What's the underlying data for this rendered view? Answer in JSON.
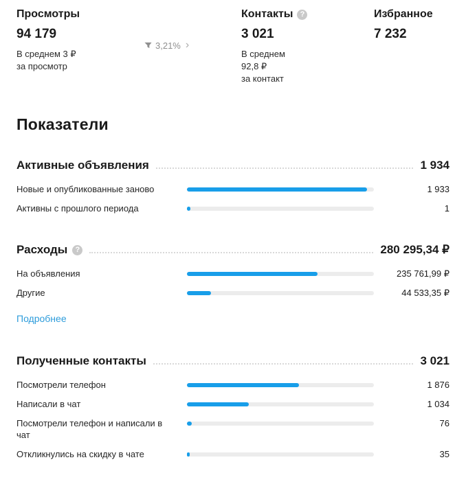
{
  "colors": {
    "accent": "#189ee9",
    "link": "#2d9cdb"
  },
  "summary": {
    "views": {
      "label": "Просмотры",
      "value": "94 179",
      "sub": "В среднем 3 ₽\nза просмотр"
    },
    "funnel": {
      "percent": "3,21%"
    },
    "contacts": {
      "label": "Контакты",
      "value": "3 021",
      "sub": "В среднем\n92,8 ₽\nза контакт"
    },
    "favorites": {
      "label": "Избранное",
      "value": "7 232"
    }
  },
  "heading": "Показатели",
  "sections": [
    {
      "title": "Активные объявления",
      "total": "1 934",
      "rows": [
        {
          "label": "Новые и опубликованные заново",
          "value": "1 933",
          "percent": 96.5
        },
        {
          "label": "Активны с прошлого периода",
          "value": "1",
          "percent": 2
        }
      ]
    },
    {
      "title": "Расходы",
      "total": "280 295,34 ₽",
      "link": "Подробнее",
      "rows": [
        {
          "label": "На объявления",
          "value": "235 761,99 ₽",
          "percent": 70
        },
        {
          "label": "Другие",
          "value": "44 533,35 ₽",
          "percent": 13
        }
      ]
    },
    {
      "title": "Полученные контакты",
      "total": "3 021",
      "rows": [
        {
          "label": "Посмотрели телефон",
          "value": "1 876",
          "percent": 60
        },
        {
          "label": "Написали в чат",
          "value": "1 034",
          "percent": 33
        },
        {
          "label": "Посмотрели телефон и написали в чат",
          "value": "76",
          "percent": 2.5
        },
        {
          "label": "Откликнулись на скидку в чате",
          "value": "35",
          "percent": 1.5
        }
      ]
    }
  ],
  "chart_data": [
    {
      "type": "bar",
      "title": "Активные объявления",
      "categories": [
        "Новые и опубликованные заново",
        "Активны с прошлого периода"
      ],
      "values": [
        1933,
        1
      ],
      "total": 1934
    },
    {
      "type": "bar",
      "title": "Расходы",
      "categories": [
        "На объявления",
        "Другие"
      ],
      "values": [
        235761.99,
        44533.35
      ],
      "total": 280295.34,
      "unit": "₽"
    },
    {
      "type": "bar",
      "title": "Полученные контакты",
      "categories": [
        "Посмотрели телефон",
        "Написали в чат",
        "Посмотрели телефон и написали в чат",
        "Откликнулись на скидку в чате"
      ],
      "values": [
        1876,
        1034,
        76,
        35
      ],
      "total": 3021
    }
  ]
}
